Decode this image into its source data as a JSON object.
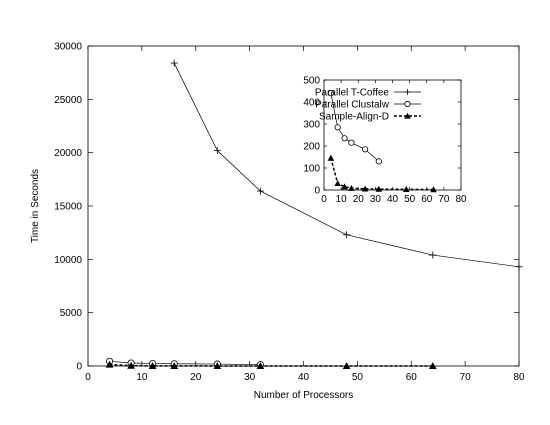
{
  "chart_data": [
    {
      "type": "line",
      "title": "",
      "xlabel": "Number of Processors",
      "ylabel": "Time in Seconds",
      "xlim": [
        0,
        80
      ],
      "ylim": [
        0,
        30000
      ],
      "x_ticks": [
        0,
        10,
        20,
        30,
        40,
        50,
        60,
        70,
        80
      ],
      "y_ticks": [
        0,
        5000,
        10000,
        15000,
        20000,
        25000,
        30000
      ],
      "grid": false,
      "legend": "none",
      "series": [
        {
          "name": "Parallel T-Coffee",
          "marker": "plus",
          "style": "solid",
          "x": [
            16,
            24,
            32,
            48,
            64,
            80
          ],
          "values": [
            28400,
            20200,
            16400,
            12300,
            10400,
            9300
          ]
        },
        {
          "name": "Parallel Clustalw",
          "marker": "circle",
          "style": "solid",
          "x": [
            4,
            8,
            12,
            16,
            24,
            32
          ],
          "values": [
            440,
            280,
            230,
            210,
            180,
            130
          ]
        },
        {
          "name": "Sample-Align-D",
          "marker": "triangle",
          "style": "dashed",
          "x": [
            4,
            8,
            12,
            16,
            24,
            32,
            48,
            64
          ],
          "values": [
            140,
            30,
            12,
            8,
            5,
            4,
            3,
            2
          ]
        }
      ]
    },
    {
      "type": "line",
      "title": "",
      "xlabel": "",
      "ylabel": "",
      "xlim": [
        0,
        80
      ],
      "ylim": [
        0,
        500
      ],
      "x_ticks": [
        0,
        10,
        20,
        30,
        40,
        50,
        60,
        70,
        80
      ],
      "y_ticks": [
        0,
        100,
        200,
        300,
        400,
        500
      ],
      "grid": false,
      "legend": "top-right",
      "series": [
        {
          "name": "Parallel T-Coffee",
          "marker": "plus",
          "style": "solid",
          "x": [],
          "values": []
        },
        {
          "name": "Parallel Clustalw",
          "marker": "circle",
          "style": "solid",
          "x": [
            4,
            8,
            12,
            16,
            24,
            32
          ],
          "values": [
            440,
            285,
            235,
            215,
            185,
            130
          ]
        },
        {
          "name": "Sample-Align-D",
          "marker": "triangle",
          "style": "dashed",
          "x": [
            4,
            8,
            12,
            16,
            24,
            32,
            48,
            64
          ],
          "values": [
            145,
            30,
            15,
            8,
            5,
            4,
            3,
            2
          ]
        }
      ]
    }
  ]
}
